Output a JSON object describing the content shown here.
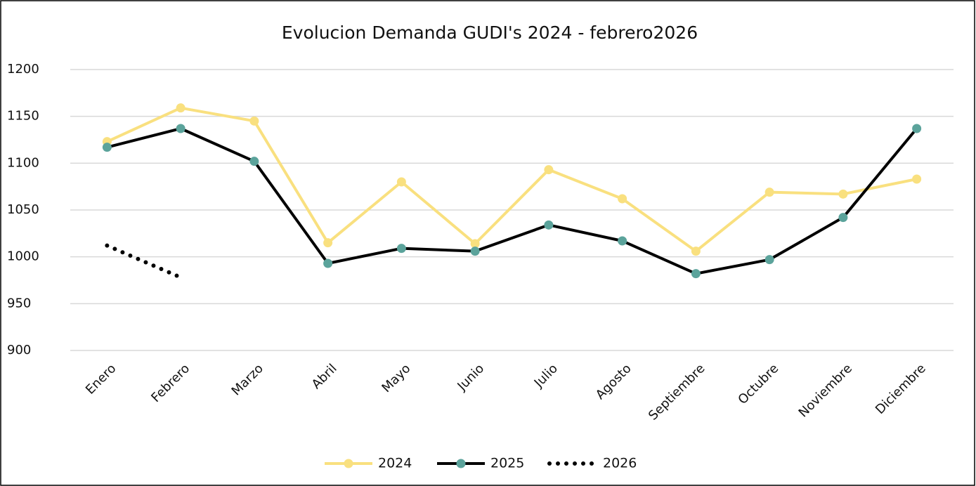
{
  "chart_data": {
    "type": "line",
    "title": "Evolucion Demanda GUDI's 2024 - febrero2026",
    "categories": [
      "Enero",
      "Febrero",
      "Marzo",
      "Abril",
      "Mayo",
      "Junio",
      "Julio",
      "Agosto",
      "Septiembre",
      "Octubre",
      "Noviembre",
      "Diciembre"
    ],
    "series": [
      {
        "name": "2024",
        "color": "#f9e07f",
        "marker_color": "#f9e07f",
        "line_style": "solid",
        "values": [
          1123,
          1159,
          1145,
          1015,
          1080,
          1014,
          1093,
          1062,
          1006,
          1069,
          1067,
          1083
        ]
      },
      {
        "name": "2025",
        "color": "#000000",
        "marker_color": "#5ba39b",
        "line_style": "solid",
        "values": [
          1117,
          1137,
          1102,
          993,
          1009,
          1006,
          1034,
          1017,
          982,
          997,
          1042,
          1137
        ]
      },
      {
        "name": "2026",
        "color": "#000000",
        "marker_color": null,
        "line_style": "dotted",
        "values": [
          1012,
          978,
          null,
          null,
          null,
          null,
          null,
          null,
          null,
          null,
          null,
          null
        ]
      }
    ],
    "ylim": [
      900,
      1200
    ],
    "yticks": [
      900,
      950,
      1000,
      1050,
      1100,
      1150,
      1200
    ],
    "grid": true,
    "legend": "bottom"
  }
}
